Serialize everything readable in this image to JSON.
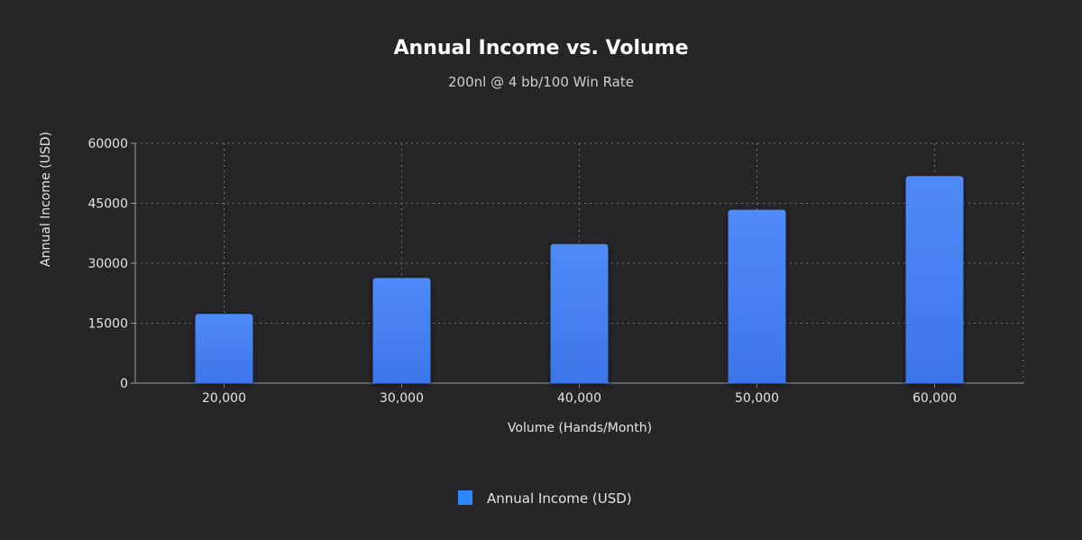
{
  "chart_data": {
    "type": "bar",
    "title": "Annual Income vs. Volume",
    "subtitle": "200nl @ 4 bb/100 Win Rate",
    "xlabel": "Volume (Hands/Month)",
    "ylabel": "Annual Income (USD)",
    "categories": [
      "20,000",
      "30,000",
      "40,000",
      "50,000",
      "60,000"
    ],
    "series": [
      {
        "name": "Annual Income (USD)",
        "values": [
          17300,
          26300,
          34800,
          43400,
          51800
        ],
        "color": "#4a86f5"
      }
    ],
    "ylim": [
      0,
      60000
    ],
    "yticks": [
      "0",
      "15000",
      "30000",
      "45000",
      "60000"
    ],
    "grid": true,
    "legend_position": "bottom-center"
  },
  "colors": {
    "background": "#262628",
    "bar": "#4a86f5",
    "bar_top": "#4f8af8",
    "bar_bottom": "#3d78ec",
    "legend_swatch": "#2f87ff"
  }
}
